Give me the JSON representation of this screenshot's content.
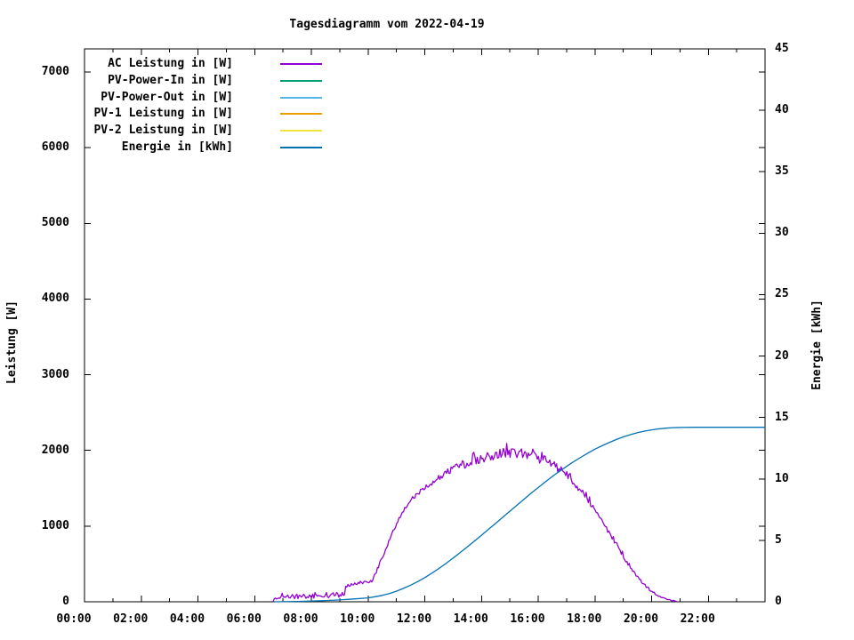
{
  "chart_data": {
    "type": "line",
    "title": "Tagesdiagramm vom 2022-04-19",
    "x_axis": {
      "label": "",
      "unit": "time of day",
      "range_hours": [
        0,
        24
      ],
      "major_tick_step_h": 2,
      "minor_tick_step_h": 1,
      "tick_labels": [
        "00:00",
        "02:00",
        "04:00",
        "06:00",
        "08:00",
        "10:00",
        "12:00",
        "14:00",
        "16:00",
        "18:00",
        "20:00",
        "22:00"
      ]
    },
    "y_left": {
      "label": "Leistung [W]",
      "range": [
        0,
        7306
      ],
      "ticks": [
        0,
        1000,
        2000,
        3000,
        4000,
        5000,
        6000,
        7000
      ]
    },
    "y_right": {
      "label": "Energie [kWh]",
      "range": [
        0,
        45
      ],
      "ticks": [
        0,
        5,
        10,
        15,
        20,
        25,
        30,
        35,
        40,
        45
      ]
    },
    "grid": false,
    "legend_position": "top-left-inside",
    "series": [
      {
        "name": "AC Leistung in [W]",
        "color": "#9400D3",
        "axis": "left",
        "style": "noisy-line",
        "visible": true,
        "points": [
          [
            6.65,
            0
          ],
          [
            6.7,
            45
          ],
          [
            7.0,
            60
          ],
          [
            7.4,
            68
          ],
          [
            7.8,
            72
          ],
          [
            8.2,
            76
          ],
          [
            8.6,
            80
          ],
          [
            9.0,
            88
          ],
          [
            9.15,
            95
          ],
          [
            9.19,
            100
          ],
          [
            9.21,
            205
          ],
          [
            9.4,
            225
          ],
          [
            9.7,
            245
          ],
          [
            10.0,
            265
          ],
          [
            10.13,
            280
          ],
          [
            10.17,
            300
          ],
          [
            10.25,
            360
          ],
          [
            10.35,
            450
          ],
          [
            10.5,
            580
          ],
          [
            10.65,
            720
          ],
          [
            10.8,
            850
          ],
          [
            10.95,
            980
          ],
          [
            11.1,
            1100
          ],
          [
            11.25,
            1210
          ],
          [
            11.4,
            1290
          ],
          [
            11.6,
            1380
          ],
          [
            11.8,
            1450
          ],
          [
            12.0,
            1510
          ],
          [
            12.2,
            1565
          ],
          [
            12.4,
            1615
          ],
          [
            12.6,
            1665
          ],
          [
            12.8,
            1715
          ],
          [
            13.0,
            1760
          ],
          [
            13.2,
            1795
          ],
          [
            13.4,
            1820
          ],
          [
            13.6,
            1845
          ],
          [
            13.8,
            1875
          ],
          [
            14.0,
            1900
          ],
          [
            14.2,
            1918
          ],
          [
            14.4,
            1933
          ],
          [
            14.6,
            1948
          ],
          [
            14.8,
            1962
          ],
          [
            15.0,
            1972
          ],
          [
            15.2,
            1970
          ],
          [
            15.4,
            1958
          ],
          [
            15.6,
            1945
          ],
          [
            15.8,
            1928
          ],
          [
            16.0,
            1905
          ],
          [
            16.2,
            1872
          ],
          [
            16.4,
            1835
          ],
          [
            16.6,
            1790
          ],
          [
            16.8,
            1740
          ],
          [
            17.0,
            1680
          ],
          [
            17.2,
            1600
          ],
          [
            17.4,
            1510
          ],
          [
            17.6,
            1420
          ],
          [
            17.8,
            1320
          ],
          [
            18.0,
            1210
          ],
          [
            18.2,
            1100
          ],
          [
            18.4,
            985
          ],
          [
            18.6,
            865
          ],
          [
            18.8,
            740
          ],
          [
            19.0,
            610
          ],
          [
            19.2,
            490
          ],
          [
            19.4,
            385
          ],
          [
            19.6,
            290
          ],
          [
            19.8,
            205
          ],
          [
            20.0,
            135
          ],
          [
            20.2,
            85
          ],
          [
            20.4,
            50
          ],
          [
            20.6,
            25
          ],
          [
            20.8,
            10
          ],
          [
            20.9,
            0
          ]
        ],
        "noise_amplitude": [
          [
            6.65,
            25
          ],
          [
            8.0,
            30
          ],
          [
            9.1,
            32
          ],
          [
            9.25,
            18
          ],
          [
            10.1,
            18
          ],
          [
            10.3,
            22
          ],
          [
            11.0,
            25
          ],
          [
            12.0,
            32
          ],
          [
            13.0,
            45
          ],
          [
            13.6,
            60
          ],
          [
            14.2,
            70
          ],
          [
            15.2,
            70
          ],
          [
            16.0,
            65
          ],
          [
            16.6,
            55
          ],
          [
            17.2,
            45
          ],
          [
            18.0,
            40
          ],
          [
            18.8,
            35
          ],
          [
            19.4,
            25
          ],
          [
            19.9,
            18
          ],
          [
            20.3,
            10
          ],
          [
            20.9,
            3
          ]
        ]
      },
      {
        "name": "PV-Power-In in [W]",
        "color": "#009E73",
        "axis": "left",
        "style": "line",
        "visible": false,
        "points": []
      },
      {
        "name": "PV-Power-Out in [W]",
        "color": "#56B4E9",
        "axis": "left",
        "style": "line",
        "visible": false,
        "points": []
      },
      {
        "name": "PV-1 Leistung in [W]",
        "color": "#E69F00",
        "axis": "left",
        "style": "line",
        "visible": false,
        "points": []
      },
      {
        "name": "PV-2 Leistung in [W]",
        "color": "#F0E442",
        "axis": "left",
        "style": "line",
        "visible": false,
        "points": []
      },
      {
        "name": "Energie in [kWh]",
        "color": "#0072B2",
        "axis": "right",
        "style": "line",
        "visible": true,
        "points": [
          [
            6.7,
            0
          ],
          [
            7.5,
            0.03
          ],
          [
            8.0,
            0.06
          ],
          [
            8.5,
            0.1
          ],
          [
            9.0,
            0.15
          ],
          [
            9.5,
            0.23
          ],
          [
            10.0,
            0.32
          ],
          [
            10.25,
            0.41
          ],
          [
            10.5,
            0.52
          ],
          [
            10.75,
            0.67
          ],
          [
            11.0,
            0.86
          ],
          [
            11.25,
            1.09
          ],
          [
            11.5,
            1.35
          ],
          [
            11.75,
            1.64
          ],
          [
            12.0,
            1.97
          ],
          [
            12.25,
            2.33
          ],
          [
            12.5,
            2.71
          ],
          [
            12.75,
            3.12
          ],
          [
            13.0,
            3.56
          ],
          [
            13.25,
            4.01
          ],
          [
            13.5,
            4.47
          ],
          [
            13.75,
            4.94
          ],
          [
            14.0,
            5.42
          ],
          [
            14.25,
            5.9
          ],
          [
            14.5,
            6.39
          ],
          [
            14.75,
            6.88
          ],
          [
            15.0,
            7.37
          ],
          [
            15.25,
            7.86
          ],
          [
            15.5,
            8.35
          ],
          [
            15.75,
            8.83
          ],
          [
            16.0,
            9.3
          ],
          [
            16.25,
            9.76
          ],
          [
            16.5,
            10.2
          ],
          [
            16.75,
            10.62
          ],
          [
            17.0,
            11.02
          ],
          [
            17.25,
            11.4
          ],
          [
            17.5,
            11.76
          ],
          [
            17.75,
            12.1
          ],
          [
            18.0,
            12.42
          ],
          [
            18.25,
            12.7
          ],
          [
            18.5,
            12.96
          ],
          [
            18.75,
            13.2
          ],
          [
            19.0,
            13.42
          ],
          [
            19.25,
            13.6
          ],
          [
            19.5,
            13.76
          ],
          [
            19.75,
            13.89
          ],
          [
            20.0,
            13.99
          ],
          [
            20.25,
            14.07
          ],
          [
            20.5,
            14.13
          ],
          [
            20.75,
            14.17
          ],
          [
            21.0,
            14.19
          ],
          [
            21.5,
            14.2
          ],
          [
            22.0,
            14.2
          ],
          [
            23.0,
            14.2
          ],
          [
            24.0,
            14.2
          ]
        ]
      }
    ],
    "daily_energy_total_kwh": 14.2
  },
  "legend": {
    "items": [
      {
        "label": "AC Leistung in [W]",
        "color": "#9400D3"
      },
      {
        "label": "PV-Power-In in [W]",
        "color": "#009E73"
      },
      {
        "label": "PV-Power-Out in [W]",
        "color": "#56B4E9"
      },
      {
        "label": "PV-1 Leistung in [W]",
        "color": "#E69F00"
      },
      {
        "label": "PV-2 Leistung in [W]",
        "color": "#F0E442"
      },
      {
        "label": "Energie in [kWh]",
        "color": "#0072B2"
      }
    ]
  }
}
